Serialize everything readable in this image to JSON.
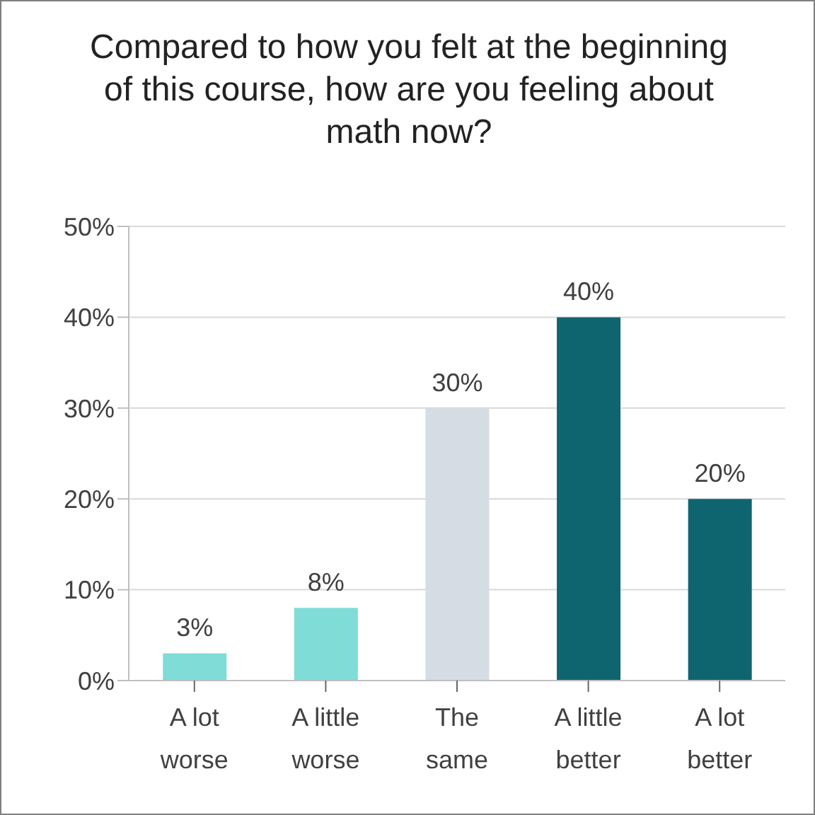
{
  "chart_data": {
    "type": "bar",
    "title": "Compared to how you felt at the beginning of this course, how are you feeling about math now?",
    "categories": [
      "A lot worse",
      "A little worse",
      "The same",
      "A little better",
      "A lot better"
    ],
    "values": [
      3,
      8,
      30,
      40,
      20
    ],
    "colors": [
      "#7fdcd6",
      "#7fdcd6",
      "#d6dce4",
      "#0e6570",
      "#0e6570"
    ],
    "value_labels": [
      "3%",
      "8%",
      "30%",
      "40%",
      "20%"
    ],
    "ylim": [
      0,
      50
    ],
    "yticks": [
      {
        "value": 0,
        "label": "0%"
      },
      {
        "value": 10,
        "label": "10%"
      },
      {
        "value": 20,
        "label": "20%"
      },
      {
        "value": 30,
        "label": "30%"
      },
      {
        "value": 40,
        "label": "40%"
      },
      {
        "value": 50,
        "label": "50%"
      }
    ],
    "grid": "y",
    "legend": false
  }
}
